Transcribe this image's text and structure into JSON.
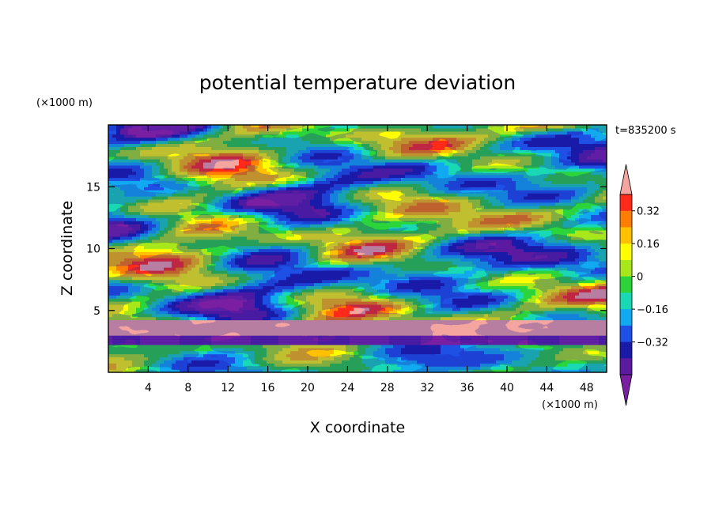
{
  "chart_data": {
    "type": "heatmap",
    "title": "potential temperature deviation",
    "xlabel": "X coordinate",
    "ylabel": "Z coordinate",
    "x_unit": "(×1000 m)",
    "y_unit": "(×1000 m)",
    "time_label": "t=835200 s",
    "xlim": [
      0,
      50
    ],
    "ylim": [
      0,
      20
    ],
    "x_ticks": [
      "4",
      "8",
      "12",
      "16",
      "20",
      "24",
      "28",
      "32",
      "36",
      "40",
      "44",
      "48"
    ],
    "y_ticks": [
      "5",
      "10",
      "15"
    ],
    "colorbar": {
      "levels": [
        -0.48,
        -0.4,
        -0.32,
        -0.24,
        -0.16,
        -0.08,
        0,
        0.08,
        0.16,
        0.24,
        0.32,
        0.4,
        0.48
      ],
      "tick_labels": [
        "0.32",
        "0.16",
        "0",
        "−0.16",
        "−0.32"
      ],
      "extend": "both",
      "colors": [
        "#7a1fa2",
        "#5b1aa0",
        "#1a1aa8",
        "#1e50e6",
        "#11aaf0",
        "#19d9b4",
        "#2bd43a",
        "#a8e81a",
        "#ffff00",
        "#ffc000",
        "#ff7d00",
        "#ff2a1a",
        "#f5a5a0"
      ]
    },
    "field_summary": {
      "z_bands": [
        {
          "z_range": [
            0,
            3
          ],
          "dominant": "near-zero to weak positive (green/yellow), blue patches"
        },
        {
          "z_range": [
            3,
            4.5
          ],
          "dominant": "strong positive layer (pink, >0.48) with purple below"
        },
        {
          "z_range": [
            4.5,
            19.5
          ],
          "dominant": "tilted alternating positive/negative streaks"
        }
      ]
    }
  }
}
